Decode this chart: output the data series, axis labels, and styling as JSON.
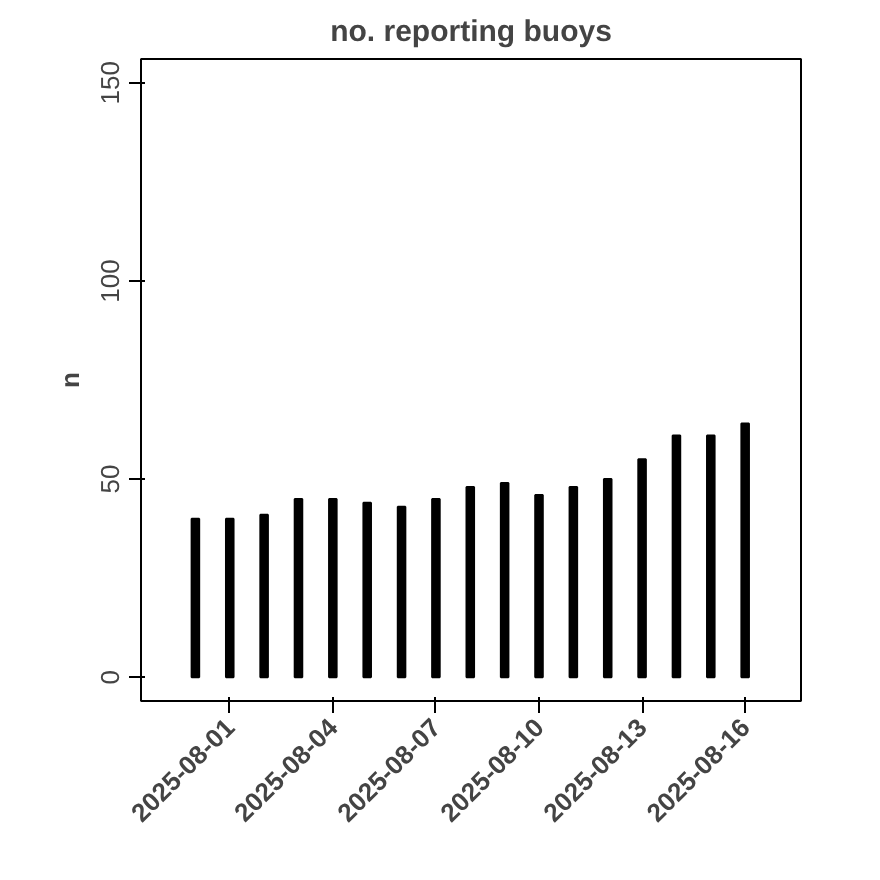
{
  "chart_data": {
    "type": "bar",
    "title": "no. reporting buoys",
    "ylabel": "n",
    "x": [
      "2025-07-31",
      "2025-08-01",
      "2025-08-02",
      "2025-08-03",
      "2025-08-04",
      "2025-08-05",
      "2025-08-06",
      "2025-08-07",
      "2025-08-08",
      "2025-08-09",
      "2025-08-10",
      "2025-08-11",
      "2025-08-12",
      "2025-08-13",
      "2025-08-14",
      "2025-08-15",
      "2025-08-16"
    ],
    "values": [
      40,
      40,
      41,
      45,
      45,
      44,
      43,
      45,
      48,
      49,
      46,
      48,
      50,
      55,
      61,
      61,
      64
    ],
    "color": "#000000",
    "xlim": [
      "2025-07-29T10:00",
      "2025-08-17T15:00"
    ],
    "xticks": [
      "2025-08-01",
      "2025-08-04",
      "2025-08-07",
      "2025-08-10",
      "2025-08-13",
      "2025-08-16"
    ],
    "ylim": [
      -6,
      156
    ],
    "yticks": [
      0,
      50,
      100,
      150
    ],
    "grid": false
  }
}
